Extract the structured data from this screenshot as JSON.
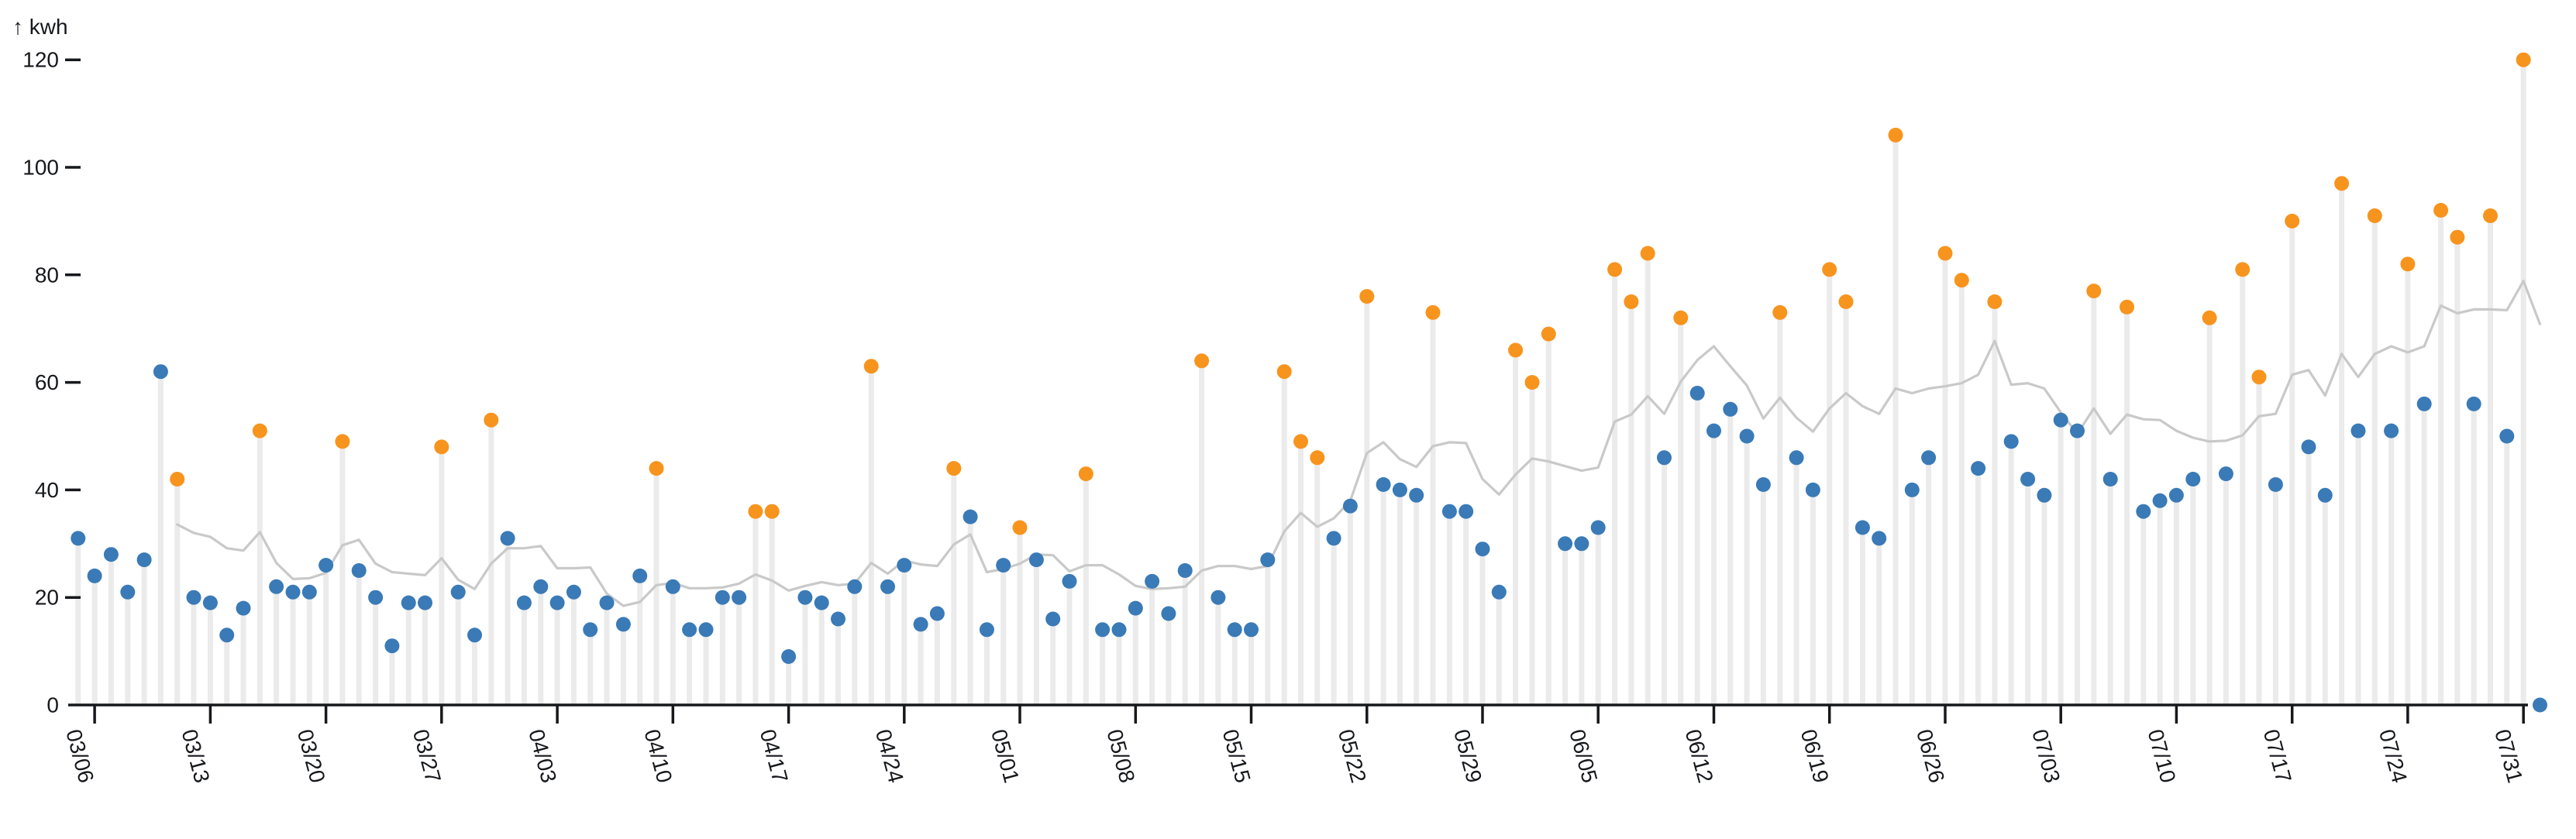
{
  "chart_data": {
    "type": "scatter",
    "subtype": "lollipop-daily-energy",
    "title": "",
    "ylabel": "kwh",
    "y_axis_corner_label": "↑ kwh",
    "ylim": [
      0,
      120
    ],
    "y_ticks": [
      0,
      20,
      40,
      60,
      80,
      100,
      120
    ],
    "x_tick_labels": [
      "03/06",
      "03/13",
      "03/20",
      "03/27",
      "04/03",
      "04/10",
      "04/17",
      "04/24",
      "05/01",
      "05/08",
      "05/15",
      "05/22",
      "05/29",
      "06/05",
      "06/12",
      "06/19",
      "06/26",
      "07/03",
      "07/10",
      "07/17",
      "07/24",
      "07/31"
    ],
    "grid": false,
    "legend": "none",
    "trend_line": "7-day trailing moving average of daily values, gray",
    "colors": {
      "normal_point": "#3a7ab7",
      "high_point": "#f7941e",
      "stem": "#ebebeb",
      "trend": "#c9c9c9",
      "axis": "#16181c",
      "text": "#16181c",
      "background": "#ffffff"
    },
    "points": [
      {
        "d": "03/05",
        "v": 31,
        "h": 0
      },
      {
        "d": "03/06",
        "v": 24,
        "h": 0
      },
      {
        "d": "03/07",
        "v": 28,
        "h": 0
      },
      {
        "d": "03/08",
        "v": 21,
        "h": 0
      },
      {
        "d": "03/09",
        "v": 27,
        "h": 0
      },
      {
        "d": "03/10",
        "v": 62,
        "h": 0
      },
      {
        "d": "03/11",
        "v": 42,
        "h": 1
      },
      {
        "d": "03/12",
        "v": 20,
        "h": 0
      },
      {
        "d": "03/13",
        "v": 19,
        "h": 0
      },
      {
        "d": "03/14",
        "v": 13,
        "h": 0
      },
      {
        "d": "03/15",
        "v": 18,
        "h": 0
      },
      {
        "d": "03/16",
        "v": 51,
        "h": 1
      },
      {
        "d": "03/17",
        "v": 22,
        "h": 0
      },
      {
        "d": "03/18",
        "v": 21,
        "h": 0
      },
      {
        "d": "03/19",
        "v": 21,
        "h": 0
      },
      {
        "d": "03/20",
        "v": 26,
        "h": 0
      },
      {
        "d": "03/21",
        "v": 49,
        "h": 1
      },
      {
        "d": "03/22",
        "v": 25,
        "h": 0
      },
      {
        "d": "03/23",
        "v": 20,
        "h": 0
      },
      {
        "d": "03/24",
        "v": 11,
        "h": 0
      },
      {
        "d": "03/25",
        "v": 19,
        "h": 0
      },
      {
        "d": "03/26",
        "v": 19,
        "h": 0
      },
      {
        "d": "03/27",
        "v": 48,
        "h": 1
      },
      {
        "d": "03/28",
        "v": 21,
        "h": 0
      },
      {
        "d": "03/29",
        "v": 13,
        "h": 0
      },
      {
        "d": "03/30",
        "v": 53,
        "h": 1
      },
      {
        "d": "03/31",
        "v": 31,
        "h": 0
      },
      {
        "d": "04/01",
        "v": 19,
        "h": 0
      },
      {
        "d": "04/02",
        "v": 22,
        "h": 0
      },
      {
        "d": "04/03",
        "v": 19,
        "h": 0
      },
      {
        "d": "04/04",
        "v": 21,
        "h": 0
      },
      {
        "d": "04/05",
        "v": 14,
        "h": 0
      },
      {
        "d": "04/06",
        "v": 19,
        "h": 0
      },
      {
        "d": "04/07",
        "v": 15,
        "h": 0
      },
      {
        "d": "04/08",
        "v": 24,
        "h": 0
      },
      {
        "d": "04/09",
        "v": 44,
        "h": 1
      },
      {
        "d": "04/10",
        "v": 22,
        "h": 0
      },
      {
        "d": "04/11",
        "v": 14,
        "h": 0
      },
      {
        "d": "04/12",
        "v": 14,
        "h": 0
      },
      {
        "d": "04/13",
        "v": 20,
        "h": 0
      },
      {
        "d": "04/14",
        "v": 20,
        "h": 0
      },
      {
        "d": "04/15",
        "v": 36,
        "h": 1
      },
      {
        "d": "04/16",
        "v": 36,
        "h": 1
      },
      {
        "d": "04/17",
        "v": 9,
        "h": 0
      },
      {
        "d": "04/18",
        "v": 20,
        "h": 0
      },
      {
        "d": "04/19",
        "v": 19,
        "h": 0
      },
      {
        "d": "04/20",
        "v": 16,
        "h": 0
      },
      {
        "d": "04/21",
        "v": 22,
        "h": 0
      },
      {
        "d": "04/22",
        "v": 63,
        "h": 1
      },
      {
        "d": "04/23",
        "v": 22,
        "h": 0
      },
      {
        "d": "04/24",
        "v": 26,
        "h": 0
      },
      {
        "d": "04/25",
        "v": 15,
        "h": 0
      },
      {
        "d": "04/26",
        "v": 17,
        "h": 0
      },
      {
        "d": "04/27",
        "v": 44,
        "h": 1
      },
      {
        "d": "04/28",
        "v": 35,
        "h": 0
      },
      {
        "d": "04/29",
        "v": 14,
        "h": 0
      },
      {
        "d": "04/30",
        "v": 26,
        "h": 0
      },
      {
        "d": "05/01",
        "v": 33,
        "h": 1
      },
      {
        "d": "05/02",
        "v": 27,
        "h": 0
      },
      {
        "d": "05/03",
        "v": 16,
        "h": 0
      },
      {
        "d": "05/04",
        "v": 23,
        "h": 0
      },
      {
        "d": "05/05",
        "v": 43,
        "h": 1
      },
      {
        "d": "05/06",
        "v": 14,
        "h": 0
      },
      {
        "d": "05/07",
        "v": 14,
        "h": 0
      },
      {
        "d": "05/08",
        "v": 18,
        "h": 0
      },
      {
        "d": "05/09",
        "v": 23,
        "h": 0
      },
      {
        "d": "05/10",
        "v": 17,
        "h": 0
      },
      {
        "d": "05/11",
        "v": 25,
        "h": 0
      },
      {
        "d": "05/12",
        "v": 64,
        "h": 1
      },
      {
        "d": "05/13",
        "v": 20,
        "h": 0
      },
      {
        "d": "05/14",
        "v": 14,
        "h": 0
      },
      {
        "d": "05/15",
        "v": 14,
        "h": 0
      },
      {
        "d": "05/16",
        "v": 27,
        "h": 0
      },
      {
        "d": "05/17",
        "v": 62,
        "h": 1
      },
      {
        "d": "05/18",
        "v": 49,
        "h": 1
      },
      {
        "d": "05/19",
        "v": 46,
        "h": 1
      },
      {
        "d": "05/20",
        "v": 31,
        "h": 0
      },
      {
        "d": "05/21",
        "v": 37,
        "h": 0
      },
      {
        "d": "05/22",
        "v": 76,
        "h": 1
      },
      {
        "d": "05/23",
        "v": 41,
        "h": 0
      },
      {
        "d": "05/24",
        "v": 40,
        "h": 0
      },
      {
        "d": "05/25",
        "v": 39,
        "h": 0
      },
      {
        "d": "05/26",
        "v": 73,
        "h": 1
      },
      {
        "d": "05/27",
        "v": 36,
        "h": 0
      },
      {
        "d": "05/28",
        "v": 36,
        "h": 0
      },
      {
        "d": "05/29",
        "v": 29,
        "h": 0
      },
      {
        "d": "05/30",
        "v": 21,
        "h": 0
      },
      {
        "d": "05/31",
        "v": 66,
        "h": 1
      },
      {
        "d": "06/01",
        "v": 60,
        "h": 1
      },
      {
        "d": "06/02",
        "v": 69,
        "h": 1
      },
      {
        "d": "06/03",
        "v": 30,
        "h": 0
      },
      {
        "d": "06/04",
        "v": 30,
        "h": 0
      },
      {
        "d": "06/05",
        "v": 33,
        "h": 0
      },
      {
        "d": "06/06",
        "v": 81,
        "h": 1
      },
      {
        "d": "06/07",
        "v": 75,
        "h": 1
      },
      {
        "d": "06/08",
        "v": 84,
        "h": 1
      },
      {
        "d": "06/09",
        "v": 46,
        "h": 0
      },
      {
        "d": "06/10",
        "v": 72,
        "h": 1
      },
      {
        "d": "06/11",
        "v": 58,
        "h": 0
      },
      {
        "d": "06/12",
        "v": 51,
        "h": 0
      },
      {
        "d": "06/13",
        "v": 55,
        "h": 0
      },
      {
        "d": "06/14",
        "v": 50,
        "h": 0
      },
      {
        "d": "06/15",
        "v": 41,
        "h": 0
      },
      {
        "d": "06/16",
        "v": 73,
        "h": 1
      },
      {
        "d": "06/17",
        "v": 46,
        "h": 0
      },
      {
        "d": "06/18",
        "v": 40,
        "h": 0
      },
      {
        "d": "06/19",
        "v": 81,
        "h": 1
      },
      {
        "d": "06/20",
        "v": 75,
        "h": 1
      },
      {
        "d": "06/21",
        "v": 33,
        "h": 0
      },
      {
        "d": "06/22",
        "v": 31,
        "h": 0
      },
      {
        "d": "06/23",
        "v": 106,
        "h": 1
      },
      {
        "d": "06/24",
        "v": 40,
        "h": 0
      },
      {
        "d": "06/25",
        "v": 46,
        "h": 0
      },
      {
        "d": "06/26",
        "v": 84,
        "h": 1
      },
      {
        "d": "06/27",
        "v": 79,
        "h": 1
      },
      {
        "d": "06/28",
        "v": 44,
        "h": 0
      },
      {
        "d": "06/29",
        "v": 75,
        "h": 1
      },
      {
        "d": "06/30",
        "v": 49,
        "h": 0
      },
      {
        "d": "07/01",
        "v": 42,
        "h": 0
      },
      {
        "d": "07/02",
        "v": 39,
        "h": 0
      },
      {
        "d": "07/03",
        "v": 53,
        "h": 0
      },
      {
        "d": "07/04",
        "v": 51,
        "h": 0
      },
      {
        "d": "07/05",
        "v": 77,
        "h": 1
      },
      {
        "d": "07/06",
        "v": 42,
        "h": 0
      },
      {
        "d": "07/07",
        "v": 74,
        "h": 1
      },
      {
        "d": "07/08",
        "v": 36,
        "h": 0
      },
      {
        "d": "07/09",
        "v": 38,
        "h": 0
      },
      {
        "d": "07/10",
        "v": 39,
        "h": 0
      },
      {
        "d": "07/11",
        "v": 42,
        "h": 0
      },
      {
        "d": "07/12",
        "v": 72,
        "h": 1
      },
      {
        "d": "07/13",
        "v": 43,
        "h": 0
      },
      {
        "d": "07/14",
        "v": 81,
        "h": 1
      },
      {
        "d": "07/15",
        "v": 61,
        "h": 1
      },
      {
        "d": "07/16",
        "v": 41,
        "h": 0
      },
      {
        "d": "07/17",
        "v": 90,
        "h": 1
      },
      {
        "d": "07/18",
        "v": 48,
        "h": 0
      },
      {
        "d": "07/19",
        "v": 39,
        "h": 0
      },
      {
        "d": "07/20",
        "v": 97,
        "h": 1
      },
      {
        "d": "07/21",
        "v": 51,
        "h": 0
      },
      {
        "d": "07/22",
        "v": 91,
        "h": 1
      },
      {
        "d": "07/23",
        "v": 51,
        "h": 0
      },
      {
        "d": "07/24",
        "v": 82,
        "h": 1
      },
      {
        "d": "07/25",
        "v": 56,
        "h": 0
      },
      {
        "d": "07/26",
        "v": 92,
        "h": 1
      },
      {
        "d": "07/27",
        "v": 87,
        "h": 1
      },
      {
        "d": "07/28",
        "v": 56,
        "h": 0
      },
      {
        "d": "07/29",
        "v": 91,
        "h": 1
      },
      {
        "d": "07/30",
        "v": 50,
        "h": 0
      },
      {
        "d": "07/31",
        "v": 120,
        "h": 1
      },
      {
        "d": "08/01",
        "v": 0,
        "h": 0
      }
    ]
  }
}
